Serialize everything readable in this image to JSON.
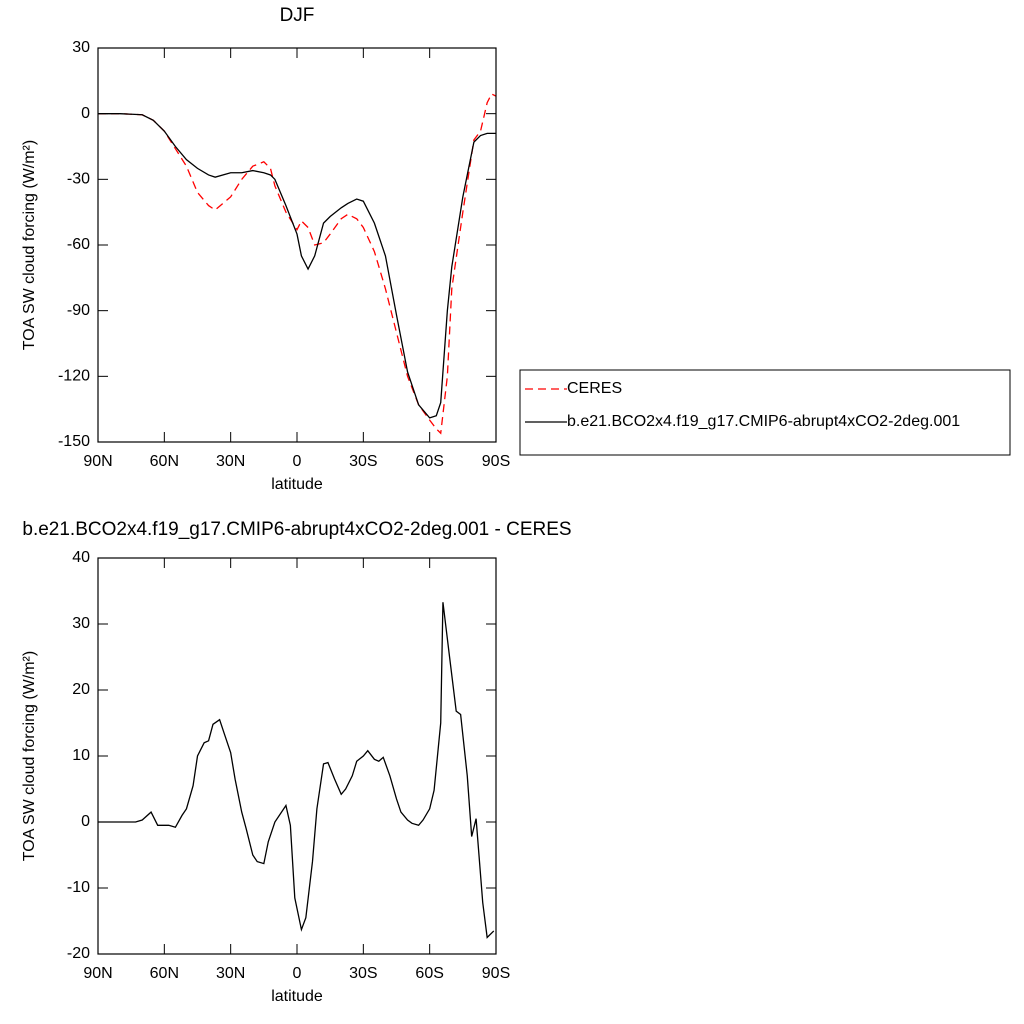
{
  "chart_data": [
    {
      "type": "line",
      "title": "DJF",
      "x_label": "latitude",
      "y_label": "TOA SW cloud forcing (W/m²)",
      "x": [
        90,
        80,
        70,
        65,
        60,
        55,
        50,
        45,
        40,
        37,
        30,
        25,
        20,
        15,
        12,
        10,
        5,
        0,
        -2,
        -5,
        -8,
        -12,
        -15,
        -20,
        -23,
        -27,
        -30,
        -35,
        -40,
        -45,
        -50,
        -55,
        -60,
        -63,
        -65,
        -68,
        -70,
        -75,
        -80,
        -83,
        -86,
        -88,
        -90
      ],
      "series": [
        {
          "name": "CERES",
          "color": "#ff0000",
          "style": "dashed",
          "values": [
            0,
            0,
            -0.5,
            -3,
            -8,
            -16,
            -24,
            -36,
            -42,
            -44,
            -38,
            -30,
            -24,
            -22,
            -25,
            -33,
            -45,
            -53,
            -49,
            -52,
            -60,
            -59,
            -55,
            -48,
            -46,
            -48,
            -52,
            -63,
            -80,
            -100,
            -120,
            -133,
            -140,
            -144,
            -146,
            -120,
            -80,
            -45,
            -12,
            -8,
            5,
            9,
            8
          ]
        },
        {
          "name": "b.e21.BCO2x4.f19_g17.CMIP6-abrupt4xCO2-2deg.001",
          "color": "#000000",
          "style": "solid",
          "values": [
            0,
            0,
            -0.5,
            -3,
            -8,
            -15,
            -21,
            -25,
            -28,
            -29,
            -27,
            -27,
            -26,
            -27,
            -28,
            -30,
            -42,
            -55,
            -65,
            -71,
            -65,
            -50,
            -47,
            -43,
            -41,
            -39,
            -40,
            -50,
            -65,
            -92,
            -118,
            -133,
            -139,
            -138,
            -132,
            -90,
            -70,
            -38,
            -13,
            -10,
            -9,
            -9,
            -9
          ]
        }
      ],
      "xlim": [
        90,
        -90
      ],
      "xticks": [
        {
          "value": 90,
          "label": "90N"
        },
        {
          "value": 60,
          "label": "60N"
        },
        {
          "value": 30,
          "label": "30N"
        },
        0,
        {
          "value": -30,
          "label": "30S"
        },
        {
          "value": -60,
          "label": "60S"
        },
        {
          "value": -90,
          "label": "90S"
        }
      ],
      "ylim": [
        -150,
        30
      ],
      "yticks": [
        -150,
        -120,
        -90,
        -60,
        -30,
        0,
        30
      ],
      "legend": "right"
    },
    {
      "type": "line",
      "title": "b.e21.BCO2x4.f19_g17.CMIP6-abrupt4xCO2-2deg.001 - CERES",
      "x_label": "latitude",
      "y_label": "TOA SW cloud forcing (W/m²)",
      "x": [
        90,
        73,
        70,
        66,
        63,
        58,
        55,
        52,
        50,
        47,
        45,
        42,
        40,
        38,
        35,
        33,
        30,
        28,
        25,
        23,
        20,
        18,
        15,
        13,
        10,
        5,
        3,
        1,
        -2,
        -4,
        -7,
        -9,
        -12,
        -14,
        -17,
        -20,
        -22,
        -25,
        -27,
        -30,
        -32,
        -35,
        -37,
        -39,
        -42,
        -45,
        -47,
        -50,
        -52,
        -55,
        -57,
        -60,
        -62,
        -65,
        -66,
        -69,
        -72,
        -74,
        -77,
        -79,
        -81,
        -84,
        -86,
        -89
      ],
      "series": [
        {
          "color": "#000000",
          "style": "solid",
          "values": [
            0,
            0,
            0.3,
            1.5,
            -0.5,
            -0.5,
            -0.8,
            1,
            2,
            5.5,
            10,
            12,
            12.3,
            14.8,
            15.5,
            13.5,
            10.5,
            6.5,
            1.5,
            -1,
            -5,
            -6,
            -6.3,
            -3,
            0,
            2.5,
            -0.5,
            -11.5,
            -16.3,
            -14.5,
            -6,
            2,
            8.8,
            9,
            6.5,
            4.2,
            5,
            7,
            9.2,
            10,
            10.8,
            9.5,
            9.2,
            9.8,
            7,
            3.5,
            1.5,
            0.3,
            -0.2,
            -0.5,
            0.3,
            2,
            4.8,
            15,
            33.3,
            25,
            16.8,
            16.3,
            7,
            -2.2,
            0.5,
            -12.2,
            -17.5,
            -16.5
          ]
        }
      ],
      "xlim": [
        90,
        -90
      ],
      "xticks": [
        {
          "value": 90,
          "label": "90N"
        },
        {
          "value": 60,
          "label": "60N"
        },
        {
          "value": 30,
          "label": "30N"
        },
        0,
        {
          "value": -30,
          "label": "30S"
        },
        {
          "value": -60,
          "label": "60S"
        },
        {
          "value": -90,
          "label": "90S"
        }
      ],
      "ylim": [
        -20,
        40
      ],
      "yticks": [
        -20,
        -10,
        0,
        10,
        20,
        30,
        40
      ]
    }
  ]
}
